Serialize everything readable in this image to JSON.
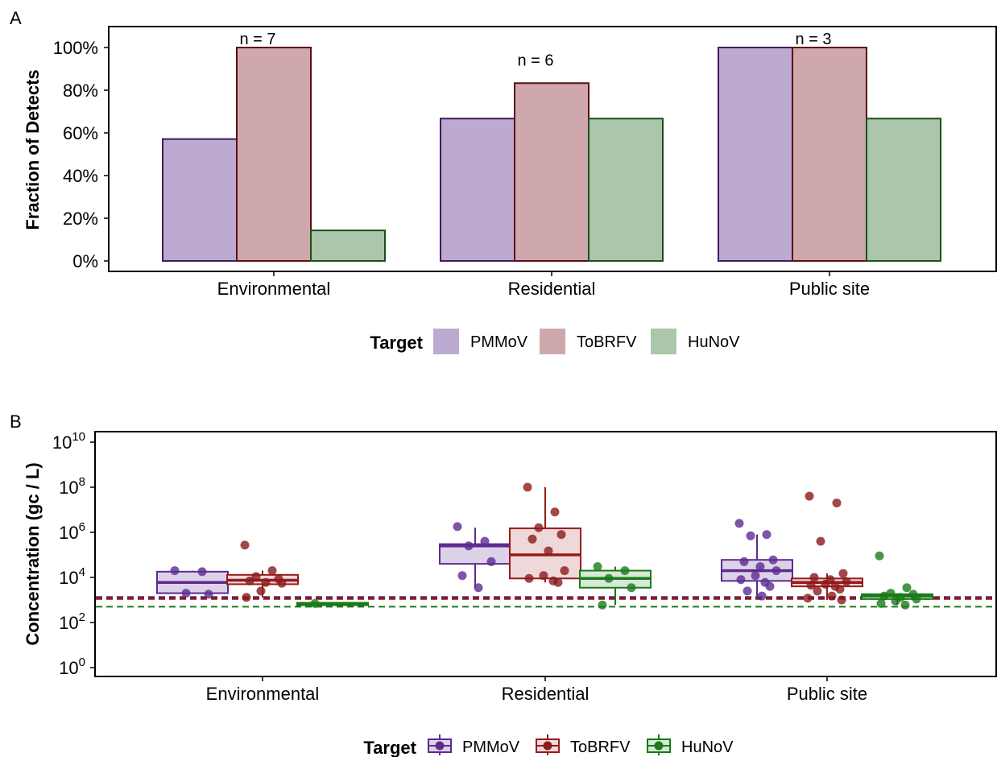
{
  "chart_data": [
    {
      "panel": "A",
      "type": "bar",
      "ylabel": "Fraction of Detects",
      "ylim": [
        0,
        1
      ],
      "yticks": [
        "0%",
        "20%",
        "40%",
        "60%",
        "80%",
        "100%"
      ],
      "categories": [
        "Environmental",
        "Residential",
        "Public site"
      ],
      "series": [
        {
          "name": "PMMoV",
          "values": [
            0.571,
            0.667,
            1.0
          ]
        },
        {
          "name": "ToBRFV",
          "values": [
            1.0,
            0.833,
            1.0
          ]
        },
        {
          "name": "HuNoV",
          "values": [
            0.143,
            0.667,
            0.667
          ]
        }
      ],
      "annotations": [
        "n = 7",
        "n = 6",
        "n = 3"
      ],
      "legend": {
        "title": "Target",
        "position": "bottom"
      }
    },
    {
      "panel": "B",
      "type": "box",
      "ylabel": "Concentration (gc / L)",
      "yscale": "log10",
      "ylim": [
        1,
        10000000000
      ],
      "ytick_exponents": [
        "0",
        "2",
        "4",
        "6",
        "8",
        "10"
      ],
      "categories": [
        "Environmental",
        "Residential",
        "Public site"
      ],
      "thresholds": [
        {
          "color": "#5e2a78",
          "value": 1300
        },
        {
          "color": "#8b1a1a",
          "value": 1300
        },
        {
          "color": "#1a7a1a",
          "value": 500
        }
      ],
      "series": [
        {
          "name": "PMMoV",
          "boxes": [
            {
              "q1": 2000,
              "median": 6000,
              "q3": 18000,
              "lo": 2000,
              "hi": 20000,
              "points": [
                20000,
                18000,
                2000,
                1800
              ]
            },
            {
              "q1": 40000,
              "median": 250000,
              "q3": 300000,
              "lo": 3500,
              "hi": 1600000,
              "points": [
                1800000,
                400000,
                250000,
                50000,
                12000,
                3500
              ]
            },
            {
              "q1": 7000,
              "median": 20000,
              "q3": 60000,
              "lo": 1500,
              "hi": 800000,
              "points": [
                2500000,
                800000,
                700000,
                60000,
                50000,
                30000,
                20000,
                12000,
                8000,
                6000,
                4000,
                2500,
                1500
              ]
            }
          ]
        },
        {
          "name": "ToBRFV",
          "boxes": [
            {
              "q1": 5000,
              "median": 7500,
              "q3": 13000,
              "lo": 1300,
              "hi": 20000,
              "points": [
                270000,
                20000,
                11000,
                8500,
                7000,
                6000,
                5500,
                2500,
                1300
              ]
            },
            {
              "q1": 9000,
              "median": 100000,
              "q3": 1500000,
              "lo": 6000,
              "hi": 100000000,
              "points": [
                100000000,
                8000000,
                1600000,
                800000,
                500000,
                150000,
                20000,
                12000,
                9000,
                7000,
                6000
              ]
            },
            {
              "q1": 4000,
              "median": 6000,
              "q3": 9000,
              "lo": 1000,
              "hi": 15000,
              "points": [
                40000000,
                20000000,
                400000,
                15000,
                10000,
                8000,
                6500,
                5000,
                4500,
                4000,
                3000,
                2500,
                1500,
                1200,
                1000
              ]
            }
          ]
        },
        {
          "name": "HuNoV",
          "boxes": [
            {
              "q1": 650,
              "median": 700,
              "q3": 750,
              "lo": 650,
              "hi": 750,
              "points": [
                700
              ]
            },
            {
              "q1": 3500,
              "median": 9000,
              "q3": 20000,
              "lo": 600,
              "hi": 30000,
              "points": [
                30000,
                20000,
                9000,
                3500,
                600
              ]
            },
            {
              "q1": 1100,
              "median": 1500,
              "q3": 1800,
              "lo": 600,
              "hi": 2000,
              "points": [
                90000,
                3500,
                2000,
                1800,
                1500,
                1300,
                1100,
                900,
                700,
                600
              ]
            }
          ]
        }
      ],
      "legend": {
        "title": "Target",
        "position": "bottom"
      }
    }
  ],
  "colors": {
    "PMMoV": {
      "fill": "#bcaad0",
      "stroke": "#3f1a5e",
      "boxfill": "#ddd3e8",
      "line": "#5e2a92",
      "dot": "#5e2a92"
    },
    "ToBRFV": {
      "fill": "#cfa8ad",
      "stroke": "#5a0d16",
      "boxfill": "#eed8da",
      "line": "#991a1a",
      "dot": "#8b1a1a"
    },
    "HuNoV": {
      "fill": "#abc6aa",
      "stroke": "#1a4f1a",
      "boxfill": "#d7e8d6",
      "line": "#1a7a1a",
      "dot": "#1a7a1a"
    }
  }
}
